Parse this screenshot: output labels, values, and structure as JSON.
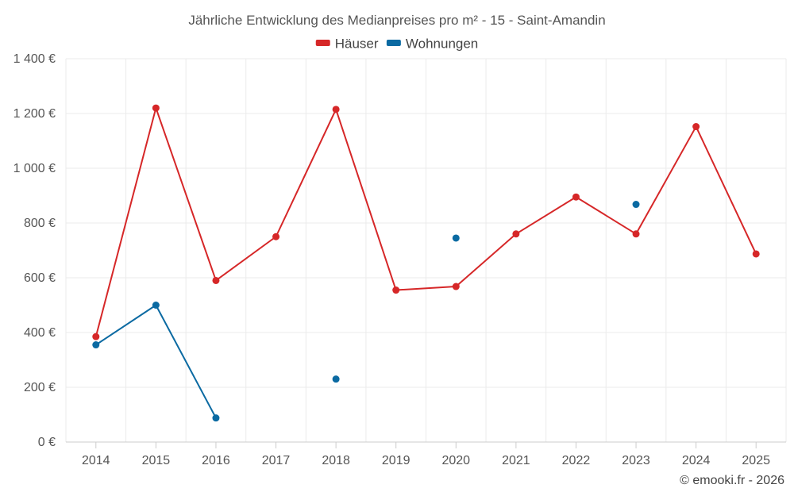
{
  "chart_data": {
    "type": "line",
    "title": "Jährliche Entwicklung des Medianpreises pro m² - 15 - Saint-Amandin",
    "categories": [
      "2014",
      "2015",
      "2016",
      "2017",
      "2018",
      "2019",
      "2020",
      "2021",
      "2022",
      "2023",
      "2024",
      "2025"
    ],
    "series": [
      {
        "name": "Häuser",
        "color": "#d62728",
        "values": [
          385,
          1220,
          590,
          750,
          1215,
          555,
          568,
          760,
          895,
          760,
          1152,
          687
        ]
      },
      {
        "name": "Wohnungen",
        "color": "#0b6aa2",
        "values": [
          355,
          500,
          88,
          null,
          230,
          null,
          745,
          null,
          null,
          868,
          null,
          null
        ]
      }
    ],
    "ylim": [
      0,
      1400
    ],
    "yticks": [
      0,
      200,
      400,
      600,
      800,
      1000,
      1200,
      1400
    ],
    "ytick_labels": [
      "0 €",
      "200 €",
      "400 €",
      "600 €",
      "800 €",
      "1 000 €",
      "1 200 €",
      "1 400 €"
    ],
    "legend_position": "top-center",
    "grid": true,
    "xlabel": "",
    "ylabel": ""
  },
  "credit": "© emooki.fr - 2026"
}
